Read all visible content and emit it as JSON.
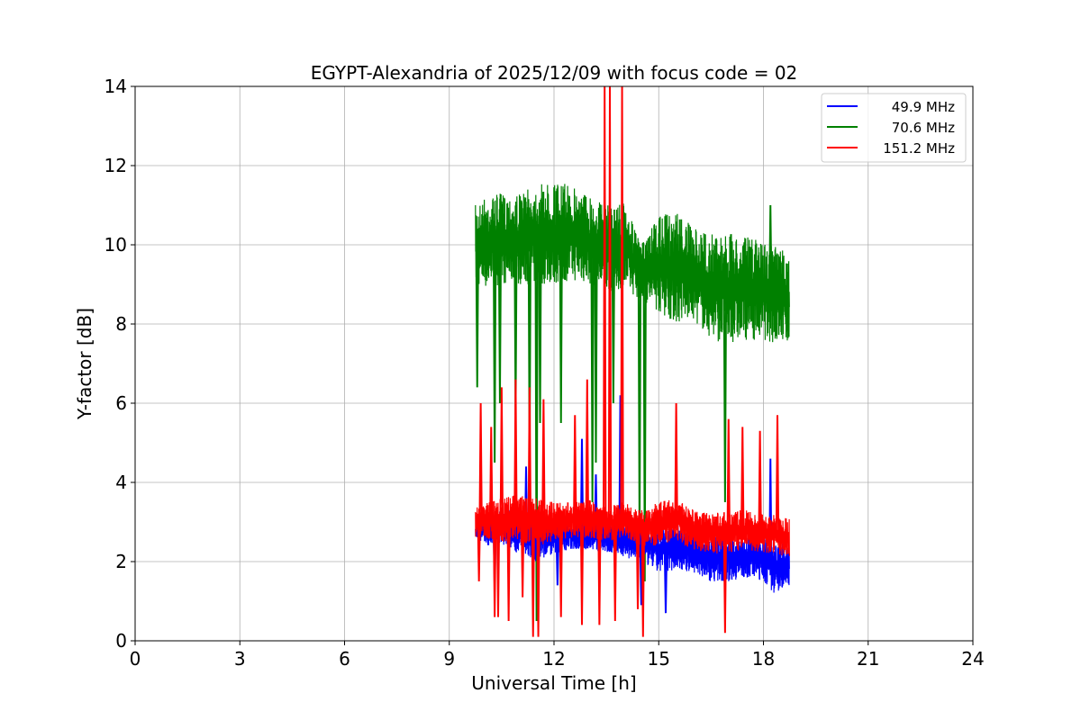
{
  "chart_data": {
    "type": "line",
    "title": "EGYPT-Alexandria of 2025/12/09 with focus code = 02",
    "xlabel": "Universal Time [h]",
    "ylabel": "Y-factor [dB]",
    "xlim": [
      0,
      24
    ],
    "ylim": [
      0,
      14
    ],
    "xticks": [
      0,
      3,
      6,
      9,
      12,
      15,
      18,
      21,
      24
    ],
    "yticks": [
      0,
      2,
      4,
      6,
      8,
      10,
      12,
      14
    ],
    "grid": true,
    "legend_position": "top-right",
    "series": [
      {
        "name": "49.9 MHz",
        "color": "#0000ff",
        "x": [
          9.75,
          10,
          10.5,
          11,
          11.5,
          12,
          12.5,
          13,
          13.5,
          14,
          14.5,
          15,
          15.5,
          16,
          16.5,
          17,
          17.5,
          18,
          18.3,
          18.75
        ],
        "low": [
          2.6,
          2.4,
          2.4,
          2.2,
          2.0,
          2.2,
          2.3,
          2.3,
          2.2,
          2.1,
          2.0,
          1.7,
          1.8,
          1.7,
          1.5,
          1.5,
          1.6,
          1.5,
          1.2,
          1.4
        ],
        "high": [
          3.0,
          3.2,
          3.4,
          3.3,
          3.2,
          3.0,
          3.0,
          3.2,
          3.1,
          3.0,
          3.0,
          2.9,
          3.0,
          2.8,
          2.7,
          2.7,
          2.6,
          2.7,
          2.4,
          2.5
        ],
        "spikes": [
          [
            10.3,
            1.3
          ],
          [
            11.2,
            4.4
          ],
          [
            12.1,
            1.4
          ],
          [
            12.8,
            5.1
          ],
          [
            13.2,
            4.2
          ],
          [
            13.9,
            6.2
          ],
          [
            14.5,
            0.9
          ],
          [
            15.2,
            0.7
          ],
          [
            16.8,
            2.5
          ],
          [
            18.2,
            4.6
          ]
        ]
      },
      {
        "name": "70.6 MHz",
        "color": "#008000",
        "x": [
          9.75,
          10,
          10.5,
          11,
          11.5,
          12,
          12.5,
          13,
          13.5,
          14,
          14.5,
          15,
          15.5,
          16,
          16.5,
          17,
          17.5,
          18,
          18.3,
          18.75
        ],
        "low": [
          9.0,
          8.9,
          9.0,
          9.0,
          9.0,
          9.0,
          9.1,
          9.0,
          8.8,
          8.9,
          8.6,
          8.3,
          8.0,
          8.1,
          7.6,
          7.5,
          7.6,
          7.6,
          7.5,
          7.5
        ],
        "high": [
          11.0,
          11.2,
          11.3,
          11.3,
          11.5,
          11.6,
          11.5,
          11.3,
          11.0,
          11.1,
          10.0,
          10.7,
          10.9,
          10.4,
          10.3,
          10.3,
          10.2,
          10.1,
          10.0,
          9.8
        ],
        "spikes": [
          [
            9.8,
            6.4
          ],
          [
            10.3,
            4.5
          ],
          [
            10.45,
            6.0
          ],
          [
            10.9,
            5.7
          ],
          [
            11.3,
            4.5
          ],
          [
            11.5,
            0.5
          ],
          [
            11.6,
            5.5
          ],
          [
            12.2,
            5.5
          ],
          [
            13.1,
            3.5
          ],
          [
            13.2,
            4.5
          ],
          [
            13.7,
            6.0
          ],
          [
            14.45,
            2.5
          ],
          [
            14.6,
            1.5
          ],
          [
            16.9,
            3.5
          ],
          [
            18.2,
            11.0
          ]
        ]
      },
      {
        "name": "151.2 MHz",
        "color": "#ff0000",
        "x": [
          9.75,
          10,
          10.5,
          11,
          11.5,
          12,
          12.5,
          13,
          13.5,
          14,
          14.5,
          15,
          15.5,
          16,
          16.5,
          17,
          17.5,
          18,
          18.3,
          18.75
        ],
        "low": [
          2.6,
          2.6,
          2.5,
          2.5,
          2.4,
          2.5,
          2.6,
          2.6,
          2.5,
          2.6,
          2.4,
          2.4,
          2.5,
          2.3,
          2.2,
          2.2,
          2.3,
          2.2,
          2.2,
          2.1
        ],
        "high": [
          3.4,
          3.5,
          3.6,
          3.7,
          3.6,
          3.5,
          3.5,
          3.6,
          3.4,
          3.5,
          3.3,
          3.5,
          3.6,
          3.3,
          3.2,
          3.3,
          3.3,
          3.2,
          3.2,
          3.1
        ],
        "spikes": [
          [
            9.85,
            1.5
          ],
          [
            9.9,
            6.0
          ],
          [
            10.2,
            5.4
          ],
          [
            10.3,
            0.6
          ],
          [
            10.4,
            0.6
          ],
          [
            10.5,
            6.4
          ],
          [
            10.7,
            0.5
          ],
          [
            10.9,
            6.6
          ],
          [
            11.1,
            1.1
          ],
          [
            11.3,
            6.4
          ],
          [
            11.4,
            0.1
          ],
          [
            11.55,
            0.1
          ],
          [
            11.7,
            6.1
          ],
          [
            12.2,
            0.6
          ],
          [
            12.6,
            5.7
          ],
          [
            12.8,
            0.4
          ],
          [
            12.95,
            6.6
          ],
          [
            13.3,
            0.4
          ],
          [
            13.45,
            14
          ],
          [
            13.6,
            14
          ],
          [
            13.75,
            0.5
          ],
          [
            13.95,
            14
          ],
          [
            14.4,
            0.8
          ],
          [
            14.55,
            0.1
          ],
          [
            15.5,
            6.0
          ],
          [
            16.9,
            0.2
          ],
          [
            17.0,
            5.6
          ],
          [
            17.4,
            5.4
          ],
          [
            17.9,
            5.3
          ],
          [
            18.4,
            5.7
          ]
        ]
      }
    ]
  }
}
